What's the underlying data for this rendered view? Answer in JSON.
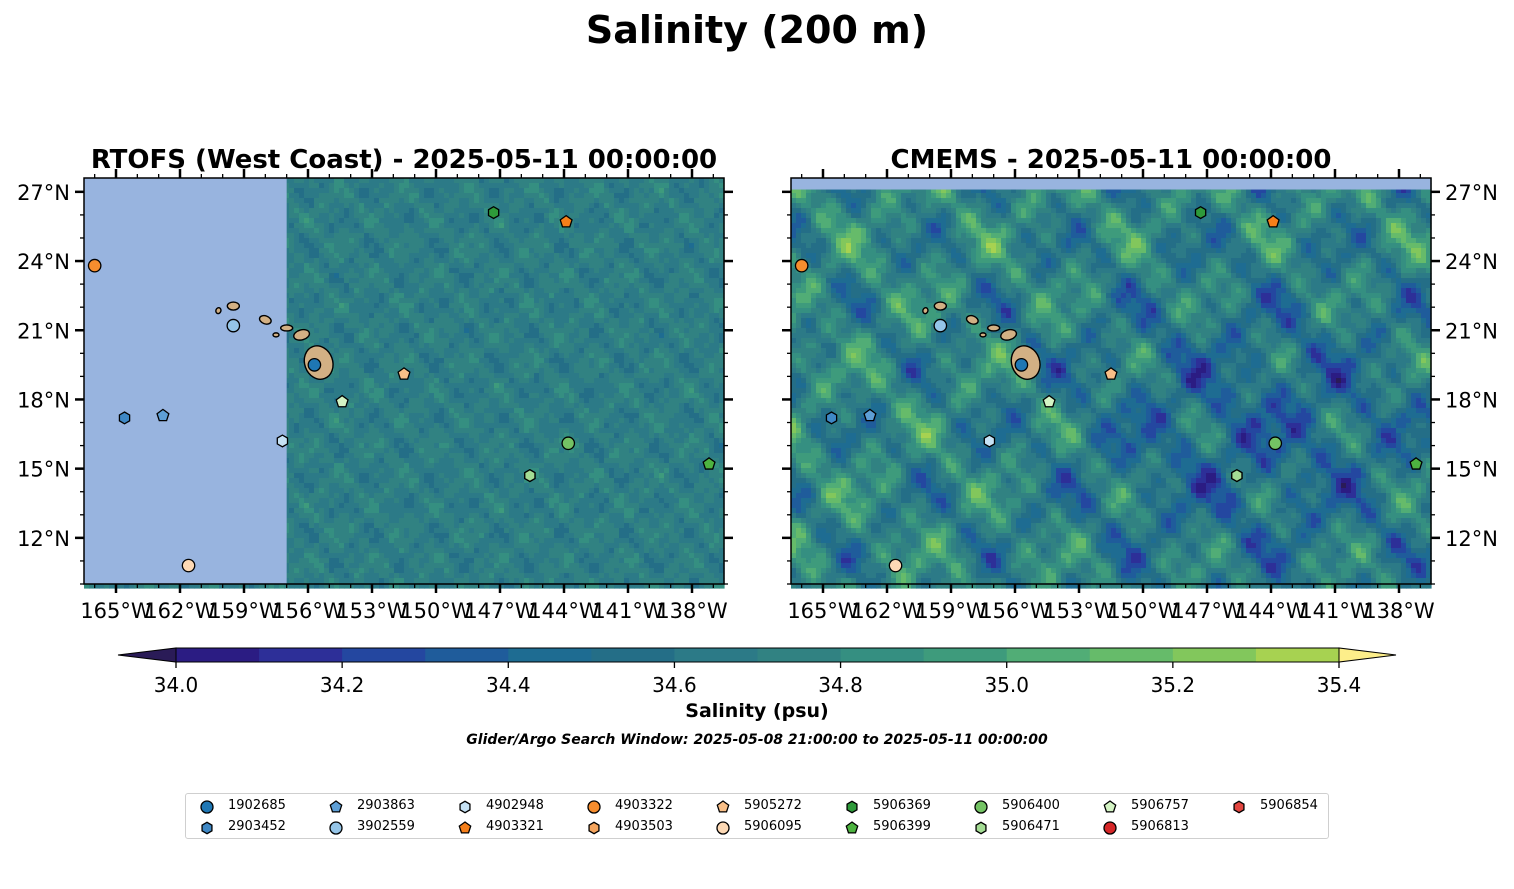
{
  "figure": {
    "suptitle": "Salinity (200 m)",
    "search_window": "Glider/Argo Search Window: 2025-05-08 21:00:00 to 2025-05-11 00:00:00"
  },
  "chart_data": [
    {
      "type": "heatmap",
      "title": "RTOFS (West Coast) - 2025-05-11 00:00:00",
      "lon_range": [
        -166.5,
        -136.5
      ],
      "lat_range": [
        10,
        27.6
      ],
      "x_ticks": [
        "165°W",
        "162°W",
        "159°W",
        "156°W",
        "153°W",
        "150°W",
        "147°W",
        "144°W",
        "141°W",
        "138°W"
      ],
      "y_ticks": [
        "27°N",
        "24°N",
        "21°N",
        "18°N",
        "15°N",
        "12°N"
      ],
      "y_tick_side": "left",
      "no_data_lon_west_of": -157.0,
      "no_data_color": "#98b4df",
      "dominant_range_psu": [
        34.5,
        34.9
      ]
    },
    {
      "type": "heatmap",
      "title": "CMEMS - 2025-05-11 00:00:00",
      "lon_range": [
        -166.5,
        -136.5
      ],
      "lat_range": [
        10,
        27.6
      ],
      "x_ticks": [
        "165°W",
        "162°W",
        "159°W",
        "156°W",
        "153°W",
        "150°W",
        "147°W",
        "144°W",
        "141°W",
        "138°W"
      ],
      "y_ticks": [
        "27°N",
        "24°N",
        "21°N",
        "18°N",
        "15°N",
        "12°N"
      ],
      "y_tick_side": "right",
      "no_data_lat_north_of": 27.1,
      "no_data_color": "#98b4df",
      "dominant_range_psu": [
        34.2,
        35.3
      ]
    }
  ],
  "colorbar": {
    "label": "Salinity (psu)",
    "ticks": [
      "34.0",
      "34.2",
      "34.4",
      "34.6",
      "34.8",
      "35.0",
      "35.2",
      "35.4"
    ],
    "vmin": 34.0,
    "vmax": 35.4,
    "step": 0.1,
    "extend": "both",
    "under_color": "#2a1b57",
    "over_color": "#fdee8a",
    "colors": [
      "#2b1c83",
      "#2d2f98",
      "#2447a0",
      "#1f5c9b",
      "#1e6c92",
      "#246e87",
      "#2c7a87",
      "#318282",
      "#358f81",
      "#3e9b7c",
      "#51ad76",
      "#66bb6a",
      "#82c75c",
      "#a7d251"
    ]
  },
  "platforms": [
    {
      "id": "1902685",
      "shape": "circle",
      "color": "#1f77b4",
      "lon": -155.7,
      "lat": 19.5
    },
    {
      "id": "2903452",
      "shape": "hexagon",
      "color": "#3f88c5",
      "lon": -164.6,
      "lat": 17.2
    },
    {
      "id": "2903863",
      "shape": "pentagon",
      "color": "#5e9fd6",
      "lon": -162.8,
      "lat": 17.3
    },
    {
      "id": "3902559",
      "shape": "circle",
      "color": "#95c5e8",
      "lon": -159.5,
      "lat": 21.2
    },
    {
      "id": "4902948",
      "shape": "hexagon",
      "color": "#c6e2f5",
      "lon": -157.2,
      "lat": 16.2
    },
    {
      "id": "4903321",
      "shape": "pentagon",
      "color": "#f67f1a",
      "lon": -143.9,
      "lat": 25.7
    },
    {
      "id": "4903322",
      "shape": "circle",
      "color": "#f68d2e",
      "lon": -166.0,
      "lat": 23.8
    },
    {
      "id": "4903503",
      "shape": "hexagon",
      "color": "#f5a55e",
      "lon": -145.6,
      "lat": 14.7
    },
    {
      "id": "5905272",
      "shape": "pentagon",
      "color": "#f9bf87",
      "lon": -151.5,
      "lat": 19.1
    },
    {
      "id": "5906095",
      "shape": "circle",
      "color": "#fdd9b5",
      "lon": -161.6,
      "lat": 10.8
    },
    {
      "id": "5906369",
      "shape": "hexagon",
      "color": "#2e9a3a",
      "lon": -147.3,
      "lat": 26.1
    },
    {
      "id": "5906399",
      "shape": "pentagon",
      "color": "#4db340",
      "lon": -137.2,
      "lat": 15.2
    },
    {
      "id": "5906400",
      "shape": "circle",
      "color": "#74c364",
      "lon": -143.8,
      "lat": 16.1
    },
    {
      "id": "5906471",
      "shape": "hexagon",
      "color": "#a4dc94",
      "lon": -145.6,
      "lat": 14.7
    },
    {
      "id": "5906757",
      "shape": "pentagon",
      "color": "#d4f4c4",
      "lon": -154.4,
      "lat": 17.9
    },
    {
      "id": "5906813",
      "shape": "circle",
      "color": "#d62728",
      "lon": null,
      "lat": null
    },
    {
      "id": "5906854",
      "shape": "hexagon",
      "color": "#e2453f",
      "lon": null,
      "lat": null
    }
  ],
  "land_color": "#d2b084"
}
